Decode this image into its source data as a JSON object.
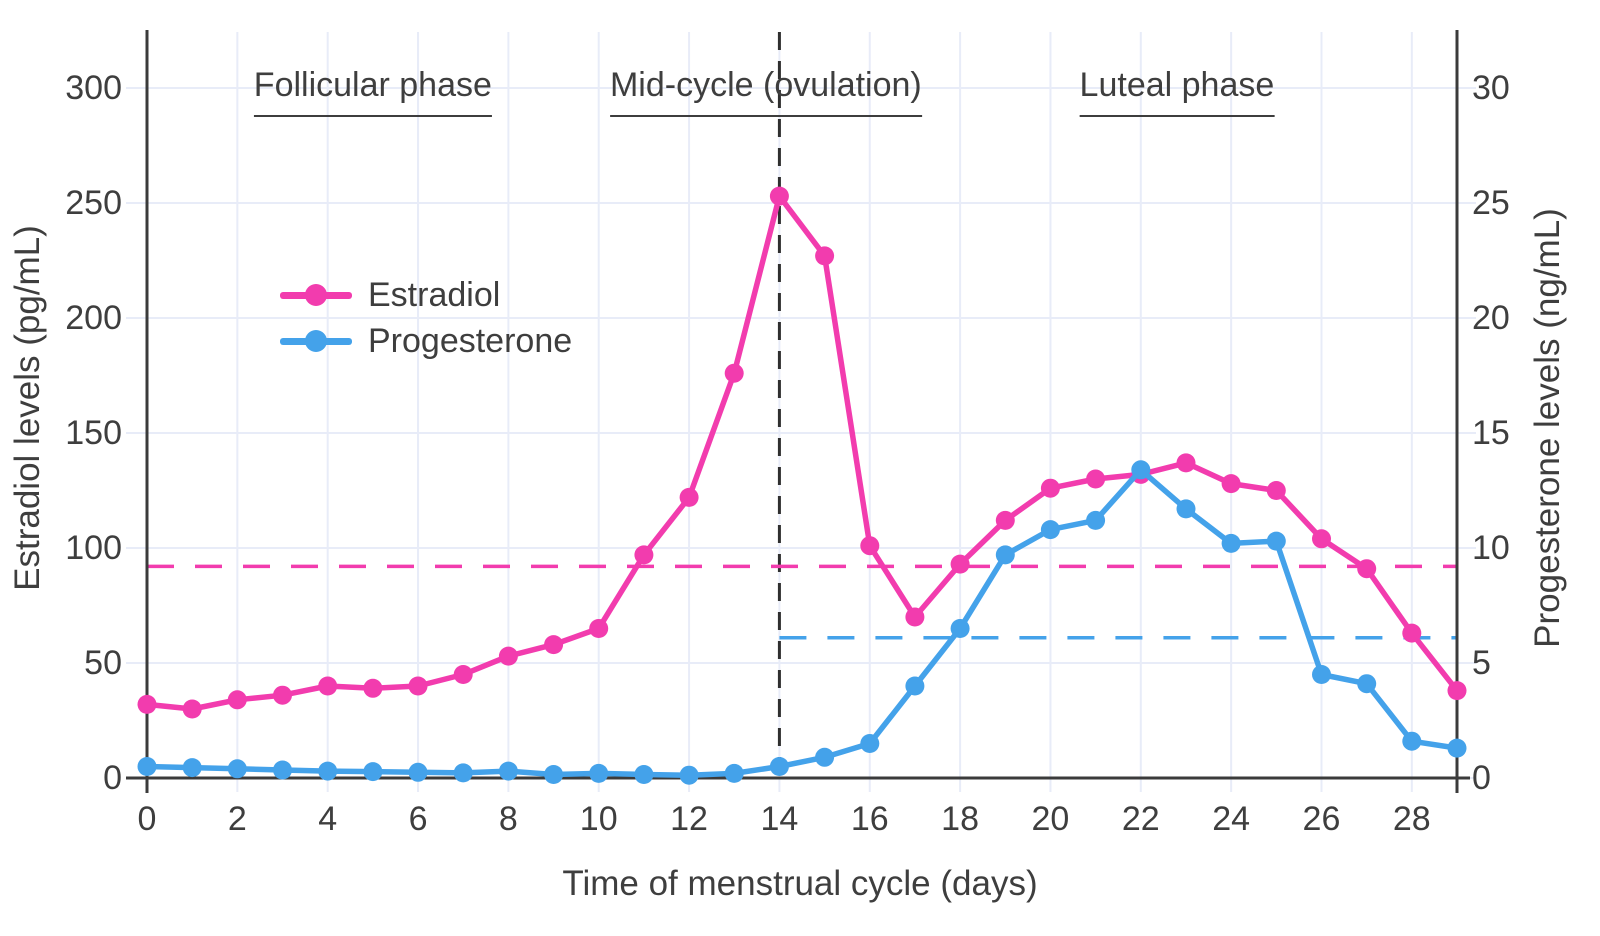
{
  "chart_data": {
    "type": "line",
    "x": [
      0,
      1,
      2,
      3,
      4,
      5,
      6,
      7,
      8,
      9,
      10,
      11,
      12,
      13,
      14,
      15,
      16,
      17,
      18,
      19,
      20,
      21,
      22,
      23,
      24,
      25,
      26,
      27,
      28,
      29
    ],
    "xlabel": "Time of menstrual cycle (days)",
    "series": [
      {
        "name": "Estradiol",
        "axis": "left",
        "color": "#F23CAE",
        "values": [
          32,
          30,
          34,
          36,
          40,
          39,
          40,
          45,
          53,
          58,
          65,
          97,
          122,
          176,
          253,
          227,
          101,
          70,
          93,
          112,
          126,
          130,
          132,
          137,
          128,
          125,
          104,
          91,
          63,
          38
        ]
      },
      {
        "name": "Progesterone",
        "axis": "right",
        "color": "#44A2EA",
        "values": [
          0.5,
          0.45,
          0.4,
          0.35,
          0.3,
          0.28,
          0.25,
          0.22,
          0.3,
          0.15,
          0.2,
          0.15,
          0.12,
          0.2,
          0.5,
          0.9,
          1.5,
          4.0,
          6.5,
          9.7,
          10.8,
          11.2,
          13.4,
          11.7,
          10.2,
          10.3,
          4.5,
          4.1,
          1.6,
          1.3
        ]
      }
    ],
    "left_axis": {
      "label": "Estradiol levels (pg/mL)",
      "ticks": [
        0,
        50,
        100,
        150,
        200,
        250,
        300
      ],
      "range": [
        0,
        300
      ]
    },
    "right_axis": {
      "label": "Progesterone levels (ng/mL)",
      "ticks": [
        0,
        5,
        10,
        15,
        20,
        25,
        30
      ],
      "range": [
        0,
        30
      ]
    },
    "x_axis": {
      "ticks": [
        0,
        2,
        4,
        6,
        8,
        10,
        12,
        14,
        16,
        18,
        20,
        22,
        24,
        26,
        28
      ],
      "range": [
        0,
        29
      ]
    },
    "annotations": {
      "phases": [
        {
          "label": "Follicular phase",
          "center_day": 5.0
        },
        {
          "label": "Mid-cycle (ovulation)",
          "center_day": 13.7
        },
        {
          "label": "Luteal phase",
          "center_day": 22.8
        }
      ],
      "ovulation_vline_day": 14,
      "estradiol_dashed_level": 92,
      "progesterone_dashed_level": 6.1,
      "progesterone_dashed_start_day": 14
    },
    "grid": true,
    "legend_position": "upper-left-inside"
  },
  "legend": {
    "items": [
      {
        "label": "Estradiol",
        "color": "#F23CAE"
      },
      {
        "label": "Progesterone",
        "color": "#44A2EA"
      }
    ]
  },
  "colors": {
    "estradiol": "#F23CAE",
    "progesterone": "#44A2EA",
    "grid": "#E8ECF8",
    "axis": "#3B3B3B",
    "text": "#3E3E3E",
    "ovulation_line": "#2F2F2F",
    "background": "#FFFFFF"
  }
}
